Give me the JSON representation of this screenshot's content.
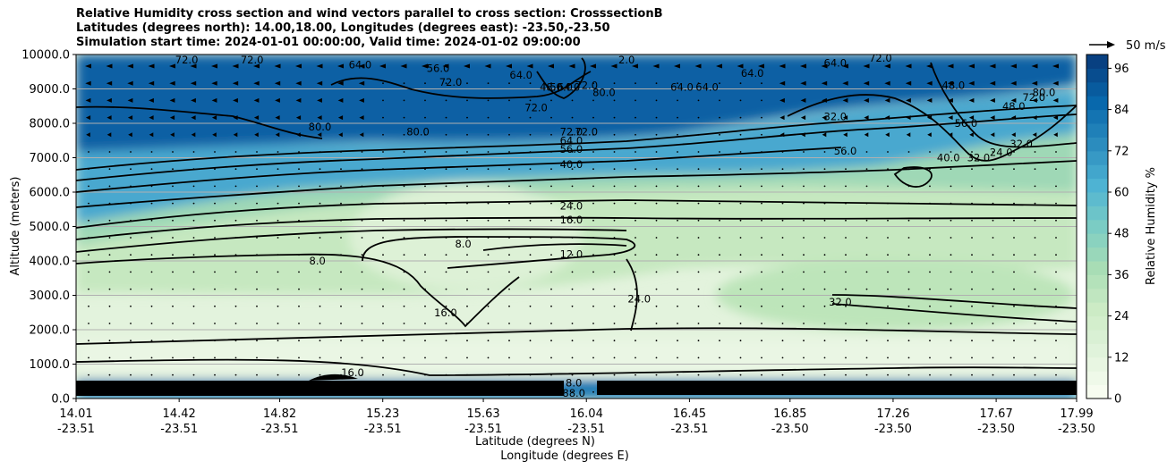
{
  "chart_data": {
    "type": "heatmap",
    "title_lines": [
      "Relative Humidity cross section and wind vectors parallel to cross section: CrosssectionB",
      "Latitudes (degrees north): 14.00,18.00, Longitudes (degrees east): -23.50,-23.50",
      "Simulation start time: 2024-01-01 00:00:00, Valid time: 2024-01-02 09:00:00"
    ],
    "ylabel": "Altitude (meters)",
    "xlabel_lines": [
      "Latitude (degrees N)",
      "Longitude (degrees E)"
    ],
    "ylim": [
      0,
      10000
    ],
    "yticks": [
      "10000.0",
      "9000.0",
      "8000.0",
      "7000.0",
      "6000.0",
      "5000.0",
      "4000.0",
      "3000.0",
      "2000.0",
      "1000.0",
      "0.0"
    ],
    "xticks": [
      {
        "lat": "14.01",
        "lon": "-23.51"
      },
      {
        "lat": "14.42",
        "lon": "-23.51"
      },
      {
        "lat": "14.82",
        "lon": "-23.51"
      },
      {
        "lat": "15.23",
        "lon": "-23.51"
      },
      {
        "lat": "15.63",
        "lon": "-23.51"
      },
      {
        "lat": "16.04",
        "lon": "-23.51"
      },
      {
        "lat": "16.45",
        "lon": "-23.51"
      },
      {
        "lat": "16.85",
        "lon": "-23.50"
      },
      {
        "lat": "17.26",
        "lon": "-23.50"
      },
      {
        "lat": "17.67",
        "lon": "-23.50"
      },
      {
        "lat": "17.99",
        "lon": "-23.50"
      }
    ],
    "xlim_lat": [
      14.01,
      17.99
    ],
    "grid": "horizontal",
    "colorbar": {
      "label": "Relative Humidity %",
      "range": [
        0,
        100
      ],
      "ticks": [
        "0",
        "12",
        "24",
        "36",
        "48",
        "60",
        "72",
        "84",
        "96"
      ],
      "colors": [
        "#f7fcf0",
        "#e0f3db",
        "#ccebc5",
        "#a8ddb5",
        "#7bccc4",
        "#4eb3d3",
        "#2b8cbe",
        "#0868ac",
        "#084081"
      ]
    },
    "wind_reference": "50 m/s",
    "contour_labels": [
      {
        "text": "72.0",
        "lat": 14.45,
        "alt": 9850
      },
      {
        "text": "72.0",
        "lat": 14.71,
        "alt": 9850
      },
      {
        "text": "64.0",
        "lat": 15.14,
        "alt": 9700
      },
      {
        "text": "56.0",
        "lat": 15.45,
        "alt": 9600
      },
      {
        "text": "72.0",
        "lat": 15.5,
        "alt": 9200
      },
      {
        "text": "64.0",
        "lat": 15.78,
        "alt": 9400
      },
      {
        "text": "48.0",
        "lat": 15.9,
        "alt": 9050
      },
      {
        "text": "56.0",
        "lat": 15.94,
        "alt": 9050
      },
      {
        "text": "64.0",
        "lat": 15.97,
        "alt": 9050
      },
      {
        "text": "72.0",
        "lat": 16.04,
        "alt": 9100
      },
      {
        "text": "72.0",
        "lat": 15.84,
        "alt": 8450
      },
      {
        "text": "80.0",
        "lat": 16.11,
        "alt": 8900
      },
      {
        "text": "2.0",
        "lat": 16.2,
        "alt": 9850
      },
      {
        "text": "64.0",
        "lat": 16.42,
        "alt": 9050
      },
      {
        "text": "64.0",
        "lat": 16.52,
        "alt": 9050
      },
      {
        "text": "64.0",
        "lat": 16.7,
        "alt": 9450
      },
      {
        "text": "64.0",
        "lat": 17.03,
        "alt": 9750
      },
      {
        "text": "72.0",
        "lat": 17.21,
        "alt": 9900
      },
      {
        "text": "80.0",
        "lat": 14.98,
        "alt": 7900
      },
      {
        "text": "80.0",
        "lat": 15.37,
        "alt": 7750
      },
      {
        "text": "72.0",
        "lat": 15.98,
        "alt": 7750
      },
      {
        "text": "72.0",
        "lat": 16.04,
        "alt": 7750
      },
      {
        "text": "64.0",
        "lat": 15.98,
        "alt": 7500
      },
      {
        "text": "56.0",
        "lat": 15.98,
        "alt": 7250
      },
      {
        "text": "40.0",
        "lat": 15.98,
        "alt": 6800
      },
      {
        "text": "32.0",
        "lat": 17.03,
        "alt": 8200
      },
      {
        "text": "56.0",
        "lat": 17.07,
        "alt": 7200
      },
      {
        "text": "48.0",
        "lat": 17.5,
        "alt": 9100
      },
      {
        "text": "56.0",
        "lat": 17.55,
        "alt": 8000
      },
      {
        "text": "40.0",
        "lat": 17.48,
        "alt": 7000
      },
      {
        "text": "32.0",
        "lat": 17.6,
        "alt": 7000
      },
      {
        "text": "24.0",
        "lat": 17.69,
        "alt": 7150
      },
      {
        "text": "32.0",
        "lat": 17.77,
        "alt": 7400
      },
      {
        "text": "48.0",
        "lat": 17.74,
        "alt": 8500
      },
      {
        "text": "80.0",
        "lat": 17.86,
        "alt": 8900
      },
      {
        "text": "72.0",
        "lat": 17.82,
        "alt": 8750
      },
      {
        "text": "24.0",
        "lat": 15.98,
        "alt": 5600
      },
      {
        "text": "16.0",
        "lat": 15.98,
        "alt": 5200
      },
      {
        "text": "8.0",
        "lat": 15.55,
        "alt": 4500
      },
      {
        "text": "8.0",
        "lat": 14.97,
        "alt": 4000
      },
      {
        "text": "12.0",
        "lat": 15.98,
        "alt": 4200
      },
      {
        "text": "16.0",
        "lat": 15.48,
        "alt": 2500
      },
      {
        "text": "24.0",
        "lat": 16.25,
        "alt": 2900
      },
      {
        "text": "32.0",
        "lat": 17.05,
        "alt": 2800
      },
      {
        "text": "16.0",
        "lat": 15.11,
        "alt": 750
      },
      {
        "text": "8.0",
        "lat": 15.99,
        "alt": 450
      },
      {
        "text": "88.0",
        "lat": 15.99,
        "alt": 150
      }
    ]
  }
}
